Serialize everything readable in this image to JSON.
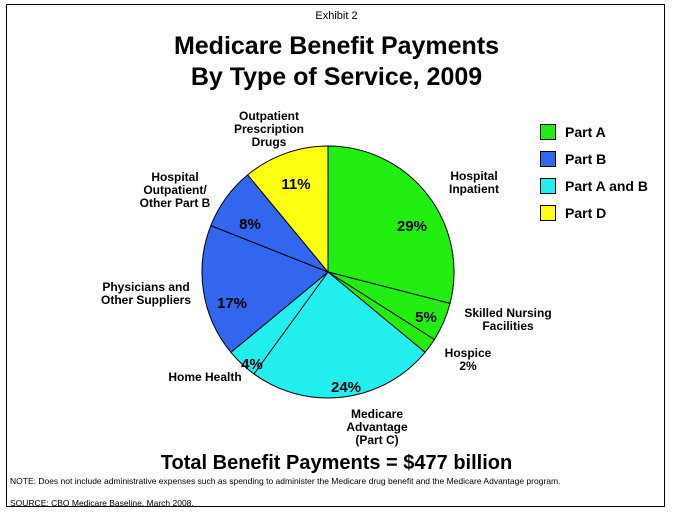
{
  "exhibit_label": "Exhibit 2",
  "title_line1": "Medicare Benefit Payments",
  "title_line2": "By Type of Service, 2009",
  "total_text": "Total Benefit Payments = $477 billion",
  "note_text": "NOTE: Does not include administrative expenses such as spending to administer the Medicare drug benefit and the Medicare Advantage program.",
  "source_text": "SOURCE: CBO Medicare Baseline, March 2008.",
  "chart_data": {
    "type": "pie",
    "unit": "%",
    "slices": [
      {
        "label": "Hospital Inpatient",
        "label_lines": [
          "Hospital",
          "Inpatient"
        ],
        "value": 29,
        "value_label": "29%",
        "group": "Part A"
      },
      {
        "label": "Skilled Nursing Facilities",
        "label_lines": [
          "Skilled Nursing",
          "Facilities"
        ],
        "value": 5,
        "value_label": "5%",
        "group": "Part A"
      },
      {
        "label": "Hospice 2%",
        "label_lines": [
          "Hospice",
          "2%"
        ],
        "value": 2,
        "value_label": "",
        "group": "Part A"
      },
      {
        "label": "Medicare Advantage (Part C)",
        "label_lines": [
          "Medicare",
          "Advantage",
          "(Part C)"
        ],
        "value": 24,
        "value_label": "24%",
        "group": "Part A and B"
      },
      {
        "label": "Home Health",
        "label_lines": [
          "Home Health"
        ],
        "value": 4,
        "value_label": "4%",
        "group": "Part A and B"
      },
      {
        "label": "Physicians and Other Suppliers",
        "label_lines": [
          "Physicians and",
          "Other Suppliers"
        ],
        "value": 17,
        "value_label": "17%",
        "group": "Part B"
      },
      {
        "label": "Hospital Outpatient/ Other Part B",
        "label_lines": [
          "Hospital",
          "Outpatient/",
          "Other Part B"
        ],
        "value": 8,
        "value_label": "8%",
        "group": "Part B"
      },
      {
        "label": "Outpatient Prescription Drugs",
        "label_lines": [
          "Outpatient",
          "Prescription",
          "Drugs"
        ],
        "value": 11,
        "value_label": "11%",
        "group": "Part D"
      }
    ],
    "legend": [
      {
        "name": "Part A",
        "color": "#22ee11"
      },
      {
        "name": "Part B",
        "color": "#3366ee"
      },
      {
        "name": "Part A and B",
        "color": "#22eeee"
      },
      {
        "name": "Part D",
        "color": "#ffff11"
      }
    ],
    "legend_position": "top-right",
    "start": "12 o'clock",
    "direction": "clockwise"
  }
}
